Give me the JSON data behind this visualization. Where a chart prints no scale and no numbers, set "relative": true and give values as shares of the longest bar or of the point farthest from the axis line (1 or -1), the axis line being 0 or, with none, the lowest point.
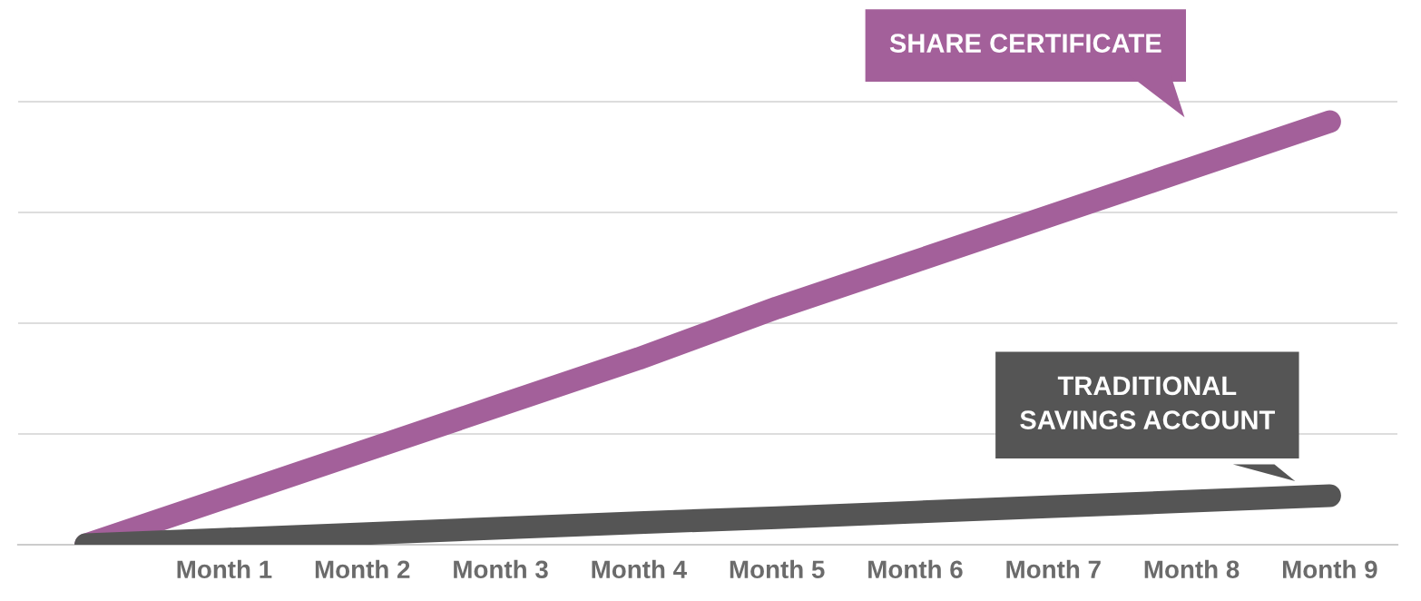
{
  "chart_data": {
    "type": "line",
    "relative": true,
    "grid": "y",
    "categories": [
      null,
      "Month 1",
      "Month 2",
      "Month 3",
      "Month 4",
      "Month 5",
      "Month 6",
      "Month 7",
      "Month 8",
      "Month 9"
    ],
    "series": [
      {
        "name": "SHARE CERTIFICATE",
        "color": "#a3609a",
        "values": [
          0,
          0.11,
          0.22,
          0.33,
          0.44,
          0.56,
          0.67,
          0.78,
          0.89,
          1
        ]
      },
      {
        "name": "TRADITIONAL\nSAVINGS ACCOUNT",
        "color": "#555555",
        "values": [
          0,
          0.013,
          0.026,
          0.039,
          0.052,
          0.064,
          0.077,
          0.09,
          0.103,
          0.116
        ]
      }
    ],
    "line_style": "solid"
  }
}
